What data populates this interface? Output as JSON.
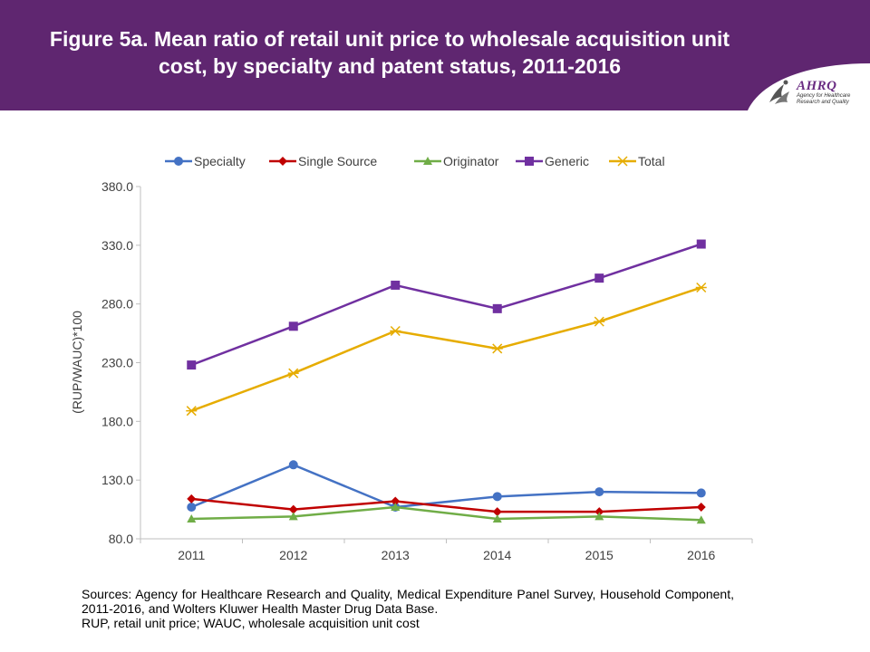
{
  "header": {
    "title": "Figure 5a. Mean ratio of retail unit price to wholesale acquisition unit cost, by specialty and patent status, 2011-2016",
    "band_color": "#5f2670"
  },
  "logo": {
    "brand": "AHRQ",
    "subtitle_line1": "Agency for Healthcare",
    "subtitle_line2": "Research and Quality",
    "emblem_icon": "hhs-eagle-icon"
  },
  "chart_data": {
    "type": "line",
    "categories": [
      "2011",
      "2012",
      "2013",
      "2014",
      "2015",
      "2016"
    ],
    "ylabel": "(RUP/WAUC)*100",
    "xlabel": "",
    "ylim": [
      80,
      380
    ],
    "yticks": [
      "80.0",
      "130.0",
      "180.0",
      "230.0",
      "280.0",
      "330.0",
      "380.0"
    ],
    "grid": false,
    "legend_position": "top",
    "series": [
      {
        "name": "Specialty",
        "color": "#4472c4",
        "marker": "circle",
        "values": [
          107,
          143,
          107,
          116,
          120,
          119
        ]
      },
      {
        "name": "Single Source",
        "color": "#c00000",
        "marker": "diamond",
        "values": [
          114,
          105,
          112,
          103,
          103,
          107
        ]
      },
      {
        "name": "Originator",
        "color": "#70ad47",
        "marker": "triangle",
        "values": [
          97,
          99,
          107,
          97,
          99,
          96
        ]
      },
      {
        "name": "Generic",
        "color": "#7030a0",
        "marker": "square",
        "values": [
          228,
          261,
          296,
          276,
          302,
          331
        ]
      },
      {
        "name": "Total",
        "color": "#e6ac00",
        "marker": "star",
        "values": [
          189,
          221,
          257,
          242,
          265,
          294
        ]
      }
    ]
  },
  "footer": {
    "sources": "Sources: Agency for Healthcare Research and Quality, Medical Expenditure Panel Survey, Household Component, 2011-2016, and Wolters Kluwer Health Master Drug Data Base.",
    "abbreviations": "RUP, retail unit price; WAUC, wholesale acquisition unit cost"
  }
}
